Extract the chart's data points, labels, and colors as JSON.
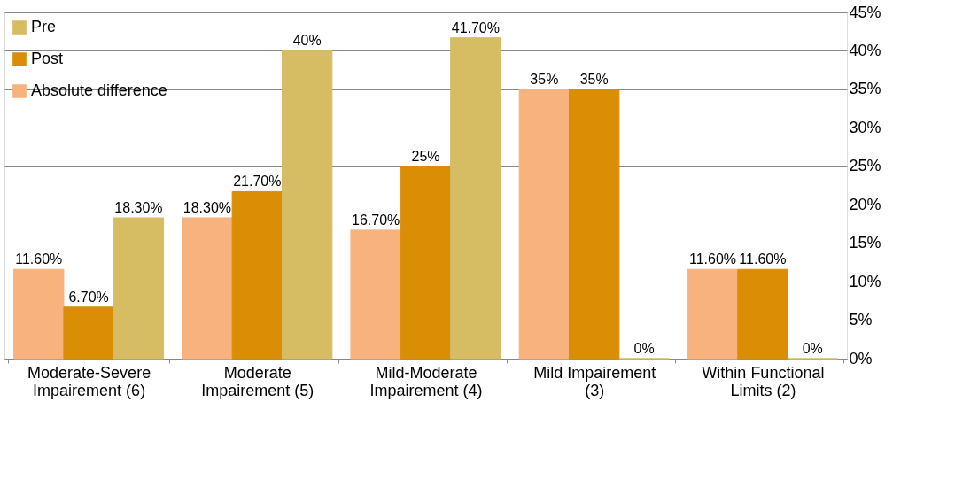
{
  "chart_data": {
    "type": "bar",
    "categories": [
      "Moderate-Severe\nImpairement (6)",
      "Moderate\nImpairement (5)",
      "Mild-Moderate\nImpairement (4)",
      "Mild Impairement\n(3)",
      "Within Functional\nLimits (2)"
    ],
    "series": [
      {
        "name": "Absolute difference",
        "color": "#f7b27e",
        "values": [
          11.6,
          18.3,
          16.7,
          35,
          11.6
        ],
        "value_labels": [
          "11.60%",
          "18.30%",
          "16.70%",
          "35%",
          "11.60%"
        ]
      },
      {
        "name": "Post",
        "color": "#d98e06",
        "values": [
          6.7,
          21.7,
          25,
          35,
          11.6
        ],
        "value_labels": [
          "6.70%",
          "21.70%",
          "25%",
          "35%",
          "11.60%"
        ]
      },
      {
        "name": "Pre",
        "color": "#d6bc62",
        "values": [
          18.3,
          40,
          41.7,
          0,
          0
        ],
        "value_labels": [
          "18.30%",
          "40%",
          "41.70%",
          "0%",
          "0%"
        ]
      }
    ],
    "ylim": [
      0,
      45
    ],
    "yticks": [
      {
        "value": 0,
        "label": "0%"
      },
      {
        "value": 5,
        "label": "5%"
      },
      {
        "value": 10,
        "label": "10%"
      },
      {
        "value": 15,
        "label": "15%"
      },
      {
        "value": 20,
        "label": "20%"
      },
      {
        "value": 25,
        "label": "25%"
      },
      {
        "value": 30,
        "label": "30%"
      },
      {
        "value": 35,
        "label": "35%"
      },
      {
        "value": 40,
        "label": "40%"
      },
      {
        "value": 45,
        "label": "45%"
      }
    ],
    "grid": "y",
    "legend": "top left"
  }
}
